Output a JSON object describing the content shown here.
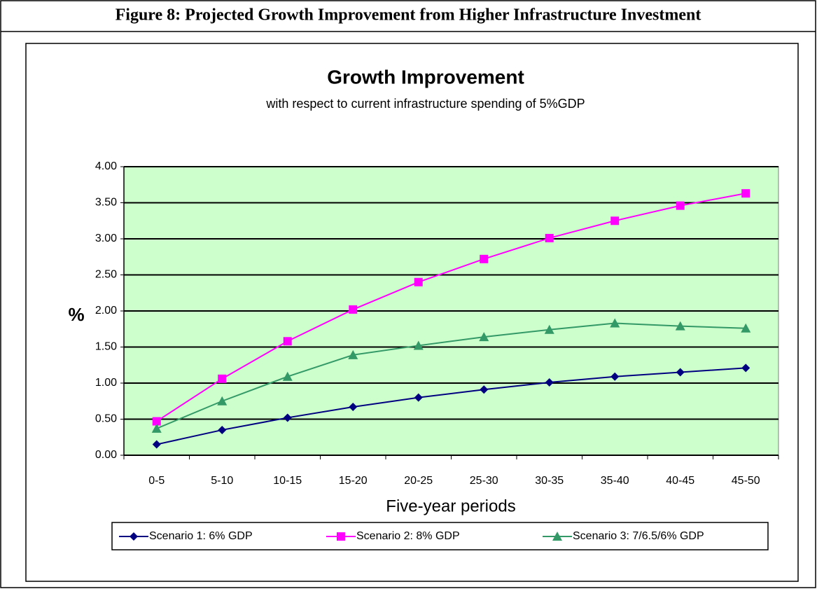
{
  "caption": "Figure 8: Projected Growth Improvement from Higher Infrastructure Investment",
  "chart_data": {
    "type": "line",
    "title": "Growth Improvement",
    "subtitle": "with respect to current infrastructure spending of 5%GDP",
    "x_label": "Five-year periods",
    "y_label": "%",
    "categories": [
      "0-5",
      "5-10",
      "10-15",
      "15-20",
      "20-25",
      "25-30",
      "30-35",
      "35-40",
      "40-45",
      "45-50"
    ],
    "series": [
      {
        "name": "Scenario 1: 6% GDP",
        "color": "#000080",
        "marker": "diamond",
        "values": [
          0.15,
          0.35,
          0.52,
          0.67,
          0.8,
          0.91,
          1.01,
          1.09,
          1.15,
          1.21
        ]
      },
      {
        "name": "Scenario 2: 8% GDP",
        "color": "#ff00ff",
        "marker": "square",
        "values": [
          0.47,
          1.06,
          1.58,
          2.02,
          2.4,
          2.72,
          3.01,
          3.25,
          3.46,
          3.63
        ]
      },
      {
        "name": "Scenario 3: 7/6.5/6% GDP",
        "color": "#339966",
        "marker": "triangle",
        "values": [
          0.37,
          0.75,
          1.09,
          1.39,
          1.52,
          1.64,
          1.74,
          1.83,
          1.79,
          1.76
        ]
      }
    ],
    "ylim": [
      0,
      4
    ],
    "yticks": [
      {
        "value": 0,
        "label": "0.00"
      },
      {
        "value": 0.5,
        "label": "0.50"
      },
      {
        "value": 1,
        "label": "1.00"
      },
      {
        "value": 1.5,
        "label": "1.50"
      },
      {
        "value": 2,
        "label": "2.00"
      },
      {
        "value": 2.5,
        "label": "2.50"
      },
      {
        "value": 3,
        "label": "3.00"
      },
      {
        "value": 3.5,
        "label": "3.50"
      },
      {
        "value": 4,
        "label": "4.00"
      }
    ],
    "grid": true,
    "plot_background": "#ccffcc",
    "legend": "bottom"
  }
}
